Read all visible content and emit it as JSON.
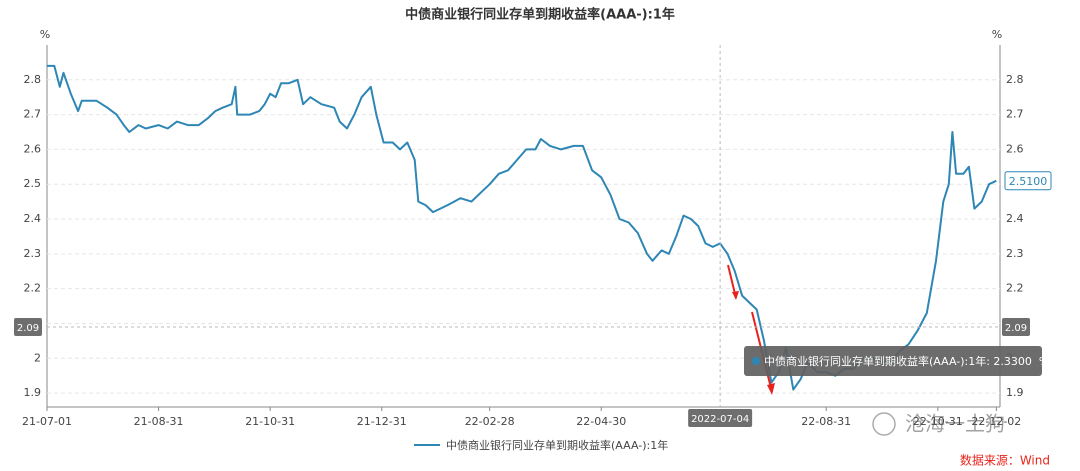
{
  "chart_data": {
    "type": "line",
    "title": "中债商业银行同业存单到期收益率(AAA-):1年",
    "y_unit_left": "%",
    "y_unit_right": "%",
    "xlim": [
      "21-07-01",
      "22-12-04"
    ],
    "xticks": [
      "21-07-01",
      "21-08-31",
      "21-10-31",
      "21-12-31",
      "22-02-28",
      "22-04-30",
      "22-08-31",
      "22-10-31",
      "22-12-02"
    ],
    "ylim": [
      1.86,
      2.9
    ],
    "yticks": [
      1.9,
      2,
      2.1,
      2.2,
      2.3,
      2.4,
      2.5,
      2.6,
      2.7,
      2.8
    ],
    "grid": true,
    "x": [
      "21-07-01",
      "21-07-05",
      "21-07-08",
      "21-07-10",
      "21-07-14",
      "21-07-18",
      "21-07-20",
      "21-07-28",
      "21-08-03",
      "21-08-08",
      "21-08-12",
      "21-08-15",
      "21-08-20",
      "21-08-24",
      "21-08-31",
      "21-09-05",
      "21-09-10",
      "21-09-16",
      "21-09-22",
      "21-09-27",
      "21-10-01",
      "21-10-05",
      "21-10-10",
      "21-10-12",
      "21-10-13",
      "21-10-20",
      "21-10-25",
      "21-10-28",
      "21-10-31",
      "21-11-03",
      "21-11-06",
      "21-11-10",
      "21-11-15",
      "21-11-18",
      "21-11-22",
      "21-11-28",
      "21-12-05",
      "21-12-08",
      "21-12-12",
      "21-12-16",
      "21-12-20",
      "21-12-25",
      "21-12-28",
      "22-01-01",
      "22-01-06",
      "22-01-10",
      "22-01-14",
      "22-01-18",
      "22-01-20",
      "22-01-24",
      "22-01-28",
      "22-02-05",
      "22-02-12",
      "22-02-18",
      "22-02-24",
      "22-02-28",
      "22-03-05",
      "22-03-10",
      "22-03-15",
      "22-03-20",
      "22-03-25",
      "22-03-28",
      "22-04-02",
      "22-04-08",
      "22-04-15",
      "22-04-20",
      "22-04-25",
      "22-04-30",
      "22-05-05",
      "22-05-10",
      "22-05-15",
      "22-05-20",
      "22-05-25",
      "22-05-28",
      "22-06-02",
      "22-06-06",
      "22-06-10",
      "22-06-14",
      "22-06-18",
      "22-06-22",
      "22-06-26",
      "22-06-30",
      "22-07-04",
      "22-07-08",
      "22-07-12",
      "22-07-16",
      "22-07-20",
      "22-07-24",
      "22-07-28",
      "22-08-01",
      "22-08-05",
      "22-08-09",
      "22-08-13",
      "22-08-17",
      "22-08-21",
      "22-08-26",
      "22-08-31",
      "22-09-05",
      "22-09-10",
      "22-09-15",
      "22-09-20",
      "22-09-25",
      "22-09-30",
      "22-10-05",
      "22-10-10",
      "22-10-15",
      "22-10-20",
      "22-10-25",
      "22-10-30",
      "22-11-03",
      "22-11-06",
      "22-11-08",
      "22-11-10",
      "22-11-14",
      "22-11-17",
      "22-11-20",
      "22-11-24",
      "22-11-28",
      "22-12-02"
    ],
    "series": [
      {
        "name": "中债商业银行同业存单到期收益率(AAA-):1年",
        "color": "#2e86b5",
        "values": [
          2.84,
          2.84,
          2.78,
          2.82,
          2.76,
          2.71,
          2.74,
          2.74,
          2.72,
          2.7,
          2.67,
          2.65,
          2.67,
          2.66,
          2.67,
          2.66,
          2.68,
          2.67,
          2.67,
          2.69,
          2.71,
          2.72,
          2.73,
          2.78,
          2.7,
          2.7,
          2.71,
          2.73,
          2.76,
          2.75,
          2.79,
          2.79,
          2.8,
          2.73,
          2.75,
          2.73,
          2.72,
          2.68,
          2.66,
          2.7,
          2.75,
          2.78,
          2.7,
          2.62,
          2.62,
          2.6,
          2.62,
          2.57,
          2.45,
          2.44,
          2.42,
          2.44,
          2.46,
          2.45,
          2.48,
          2.5,
          2.53,
          2.54,
          2.57,
          2.6,
          2.6,
          2.63,
          2.61,
          2.6,
          2.61,
          2.61,
          2.54,
          2.52,
          2.47,
          2.4,
          2.39,
          2.36,
          2.3,
          2.28,
          2.31,
          2.3,
          2.35,
          2.41,
          2.4,
          2.38,
          2.33,
          2.32,
          2.33,
          2.3,
          2.25,
          2.18,
          2.16,
          2.14,
          2.05,
          1.93,
          1.96,
          2.03,
          1.91,
          1.94,
          1.99,
          1.96,
          1.96,
          1.95,
          1.97,
          1.97,
          2.0,
          2.0,
          1.99,
          1.99,
          2.02,
          2.04,
          2.08,
          2.13,
          2.28,
          2.45,
          2.5,
          2.65,
          2.53,
          2.53,
          2.55,
          2.43,
          2.45,
          2.5,
          2.51
        ]
      }
    ],
    "end_label": {
      "value": 2.51,
      "label": "2.5100"
    },
    "crosshair": {
      "x": {
        "value": "22-07-04",
        "label": "2022-07-04"
      },
      "y": 2.09
    },
    "tooltip": "中债商业银行同业存单到期收益率(AAA-):1年: 2.3300  %",
    "watermark": "沧海一土狗",
    "source": "数据来源：Wind"
  }
}
